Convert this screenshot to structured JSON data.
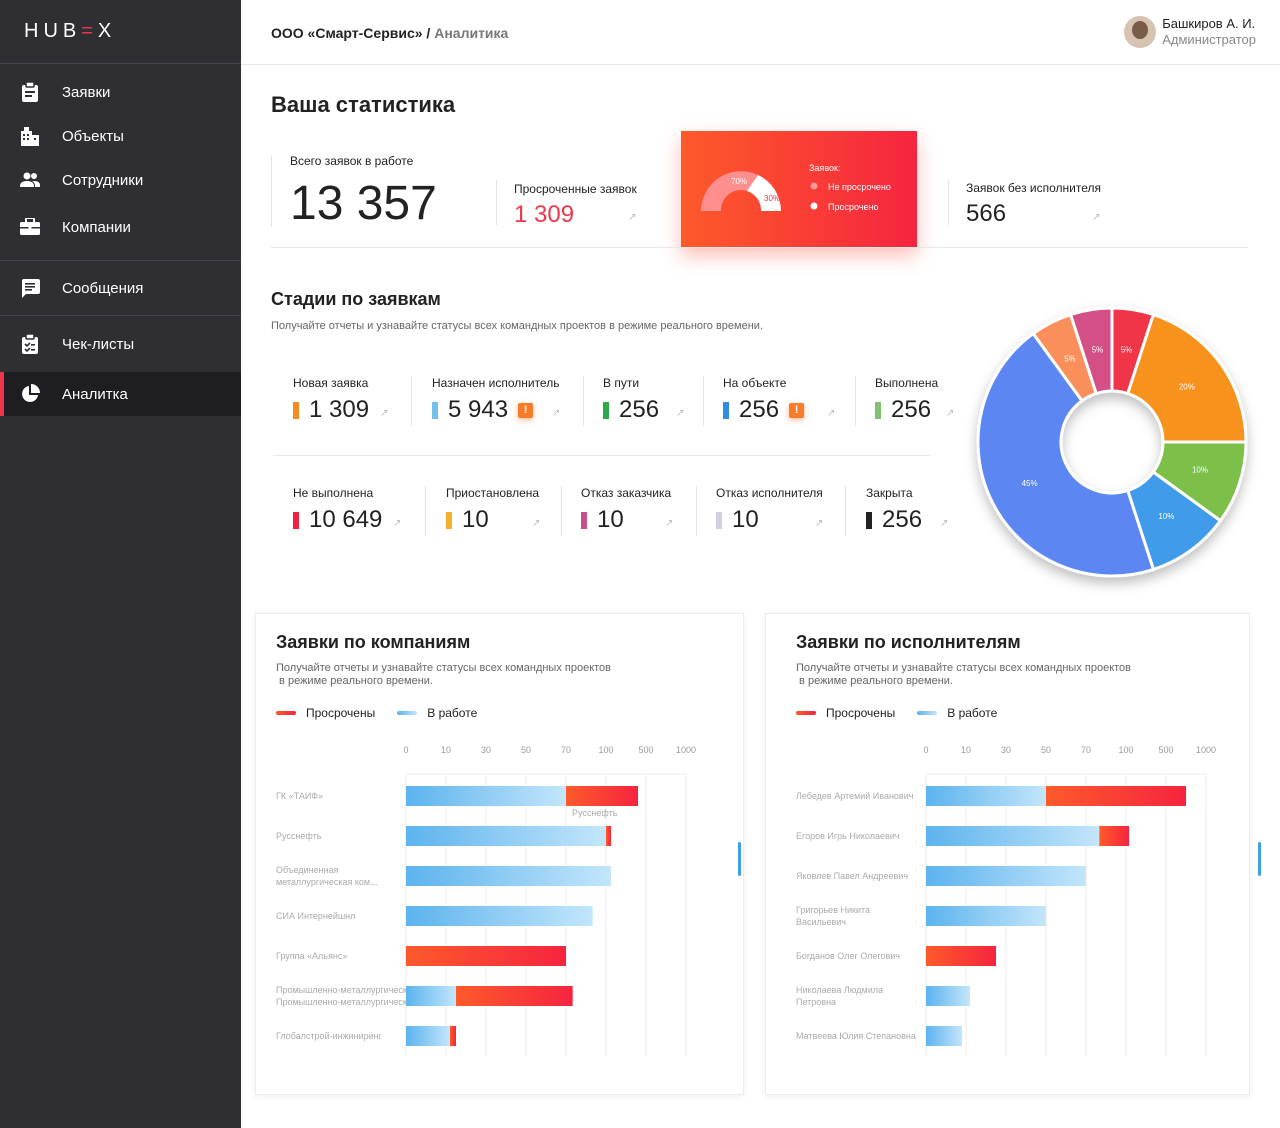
{
  "app": {
    "logo_left": "HUB",
    "logo_accent": "=",
    "logo_right": "X"
  },
  "sidebar": {
    "items": [
      {
        "label": "Заявки",
        "icon": "clipboard-icon"
      },
      {
        "label": "Объекты",
        "icon": "building-icon"
      },
      {
        "label": "Сотрудники",
        "icon": "people-icon"
      },
      {
        "label": "Компании",
        "icon": "briefcase-icon"
      },
      {
        "label": "Сообщения",
        "icon": "message-icon"
      },
      {
        "label": "Чек-листы",
        "icon": "checklist-icon"
      },
      {
        "label": "Аналитка",
        "icon": "pie-chart-icon"
      }
    ],
    "active": "Аналитка"
  },
  "header": {
    "company": "ООО «Смарт-Сервис»",
    "separator": " / ",
    "page": "Аналитика",
    "user_name": "Башкиров А. И.",
    "user_role": "Администратор"
  },
  "stats": {
    "title": "Ваша статистика",
    "total_label": "Всего заявок в работе",
    "total_value": "13 357",
    "overdue_label": "Просроченные заявок",
    "overdue_value": "1 309",
    "gauge_title": "Заявок:",
    "gauge_not_overdue": "Не просрочено",
    "gauge_overdue": "Просрочено",
    "gauge_pct_a": "70%",
    "gauge_pct_b": "30%",
    "unassigned_label": "Заявок без исполнителя",
    "unassigned_value": "566"
  },
  "stages": {
    "title": "Стадии по заявкам",
    "subtitle": "Получайте отчеты и узнавайте статусы всех командных проектов в режиме реального времени.",
    "items": [
      {
        "label": "Новая заявка",
        "value": "1 309",
        "color": "#f58a1f",
        "warn": false
      },
      {
        "label": "Назначен исполнитель",
        "value": "5 943",
        "color": "#74c0e8",
        "warn": true
      },
      {
        "label": "В пути",
        "value": "256",
        "color": "#2eaa4a",
        "warn": false
      },
      {
        "label": "На объекте",
        "value": "256",
        "color": "#2f8ee0",
        "warn": true
      },
      {
        "label": "Выполнена",
        "value": "256",
        "color": "#82c170",
        "warn": false
      },
      {
        "label": "Не выполнена",
        "value": "10 649",
        "color": "#ef2140",
        "warn": false
      },
      {
        "label": "Приостановлена",
        "value": "10",
        "color": "#f6b12c",
        "warn": false
      },
      {
        "label": "Отказ заказчика",
        "value": "10",
        "color": "#c94f8e",
        "warn": false
      },
      {
        "label": "Отказ исполнителя",
        "value": "10",
        "color": "#d6cde6",
        "warn": false
      },
      {
        "label": "Закрыта",
        "value": "256",
        "color": "#222222",
        "warn": false
      }
    ],
    "warn_glyph": "!"
  },
  "chart_data": [
    {
      "type": "pie",
      "title": "",
      "slices": [
        {
          "label": "5%",
          "value": 5,
          "color": "#f0364a"
        },
        {
          "label": "20%",
          "value": 20,
          "color": "#f7931f"
        },
        {
          "label": "10%",
          "value": 10,
          "color": "#7cc04a"
        },
        {
          "label": "10%",
          "value": 10,
          "color": "#3f9bea"
        },
        {
          "label": "45%",
          "value": 45,
          "color": "#5c86f2"
        },
        {
          "label": "5%",
          "value": 5,
          "color": "#fb8f5c"
        },
        {
          "label": "5%",
          "value": 5,
          "color": "#d34f86"
        }
      ]
    },
    {
      "type": "bar",
      "title": "Заявки по компаниям",
      "subtitle_1": "Получайте отчеты и узнавайте статусы всех командных проектов",
      "subtitle_2": " в режиме реального времени.",
      "ticks": [
        "0",
        "10",
        "30",
        "50",
        "70",
        "100",
        "500",
        "1000"
      ],
      "categories": [
        "ГК «ТАИФ»",
        "Русснефть",
        "Объединенная металлургическая ком...",
        "СИА Интернейшнл",
        "Группа «Альянс»",
        "Промышленно-металлургический хол...",
        "Глобалстрой-инжиниринг"
      ],
      "series": [
        {
          "name": "Просрочены",
          "color_from": "#fd5a2a",
          "color_to": "#f6243f",
          "values": [
            350,
            50,
            0,
            0,
            70,
            60,
            3
          ]
        },
        {
          "name": "В работе",
          "color_from": "#5cb3ee",
          "color_to": "#c3e6fb",
          "values": [
            70,
            100,
            150,
            90,
            0,
            15,
            12
          ]
        }
      ],
      "tooltip": "Русснефть",
      "scroll_marker": true
    },
    {
      "type": "bar",
      "title": "Заявки по исполнителям",
      "subtitle_1": "Получайте отчеты и узнавайте статусы всех командных проектов",
      "subtitle_2": " в режиме реального времени.",
      "ticks": [
        "0",
        "10",
        "30",
        "50",
        "70",
        "100",
        "500",
        "1000"
      ],
      "categories": [
        "Лебедев Артемий Иванович",
        "Егоров Игрь Николаевич",
        "Яковлев Павел Андреевич",
        "Григорьев Никита Васильевич",
        "Богданов Олег Олегович",
        "Николаева Людмила Петровна",
        "Матвеева Юлия Степановна"
      ],
      "series": [
        {
          "name": "Просрочены",
          "color_from": "#fd5a2a",
          "color_to": "#f6243f",
          "values": [
            700,
            50,
            0,
            0,
            25,
            0,
            0
          ]
        },
        {
          "name": "В работе",
          "color_from": "#5cb3ee",
          "color_to": "#c3e6fb",
          "values": [
            50,
            80,
            70,
            50,
            0,
            12,
            9
          ]
        }
      ],
      "scroll_marker": true
    }
  ]
}
